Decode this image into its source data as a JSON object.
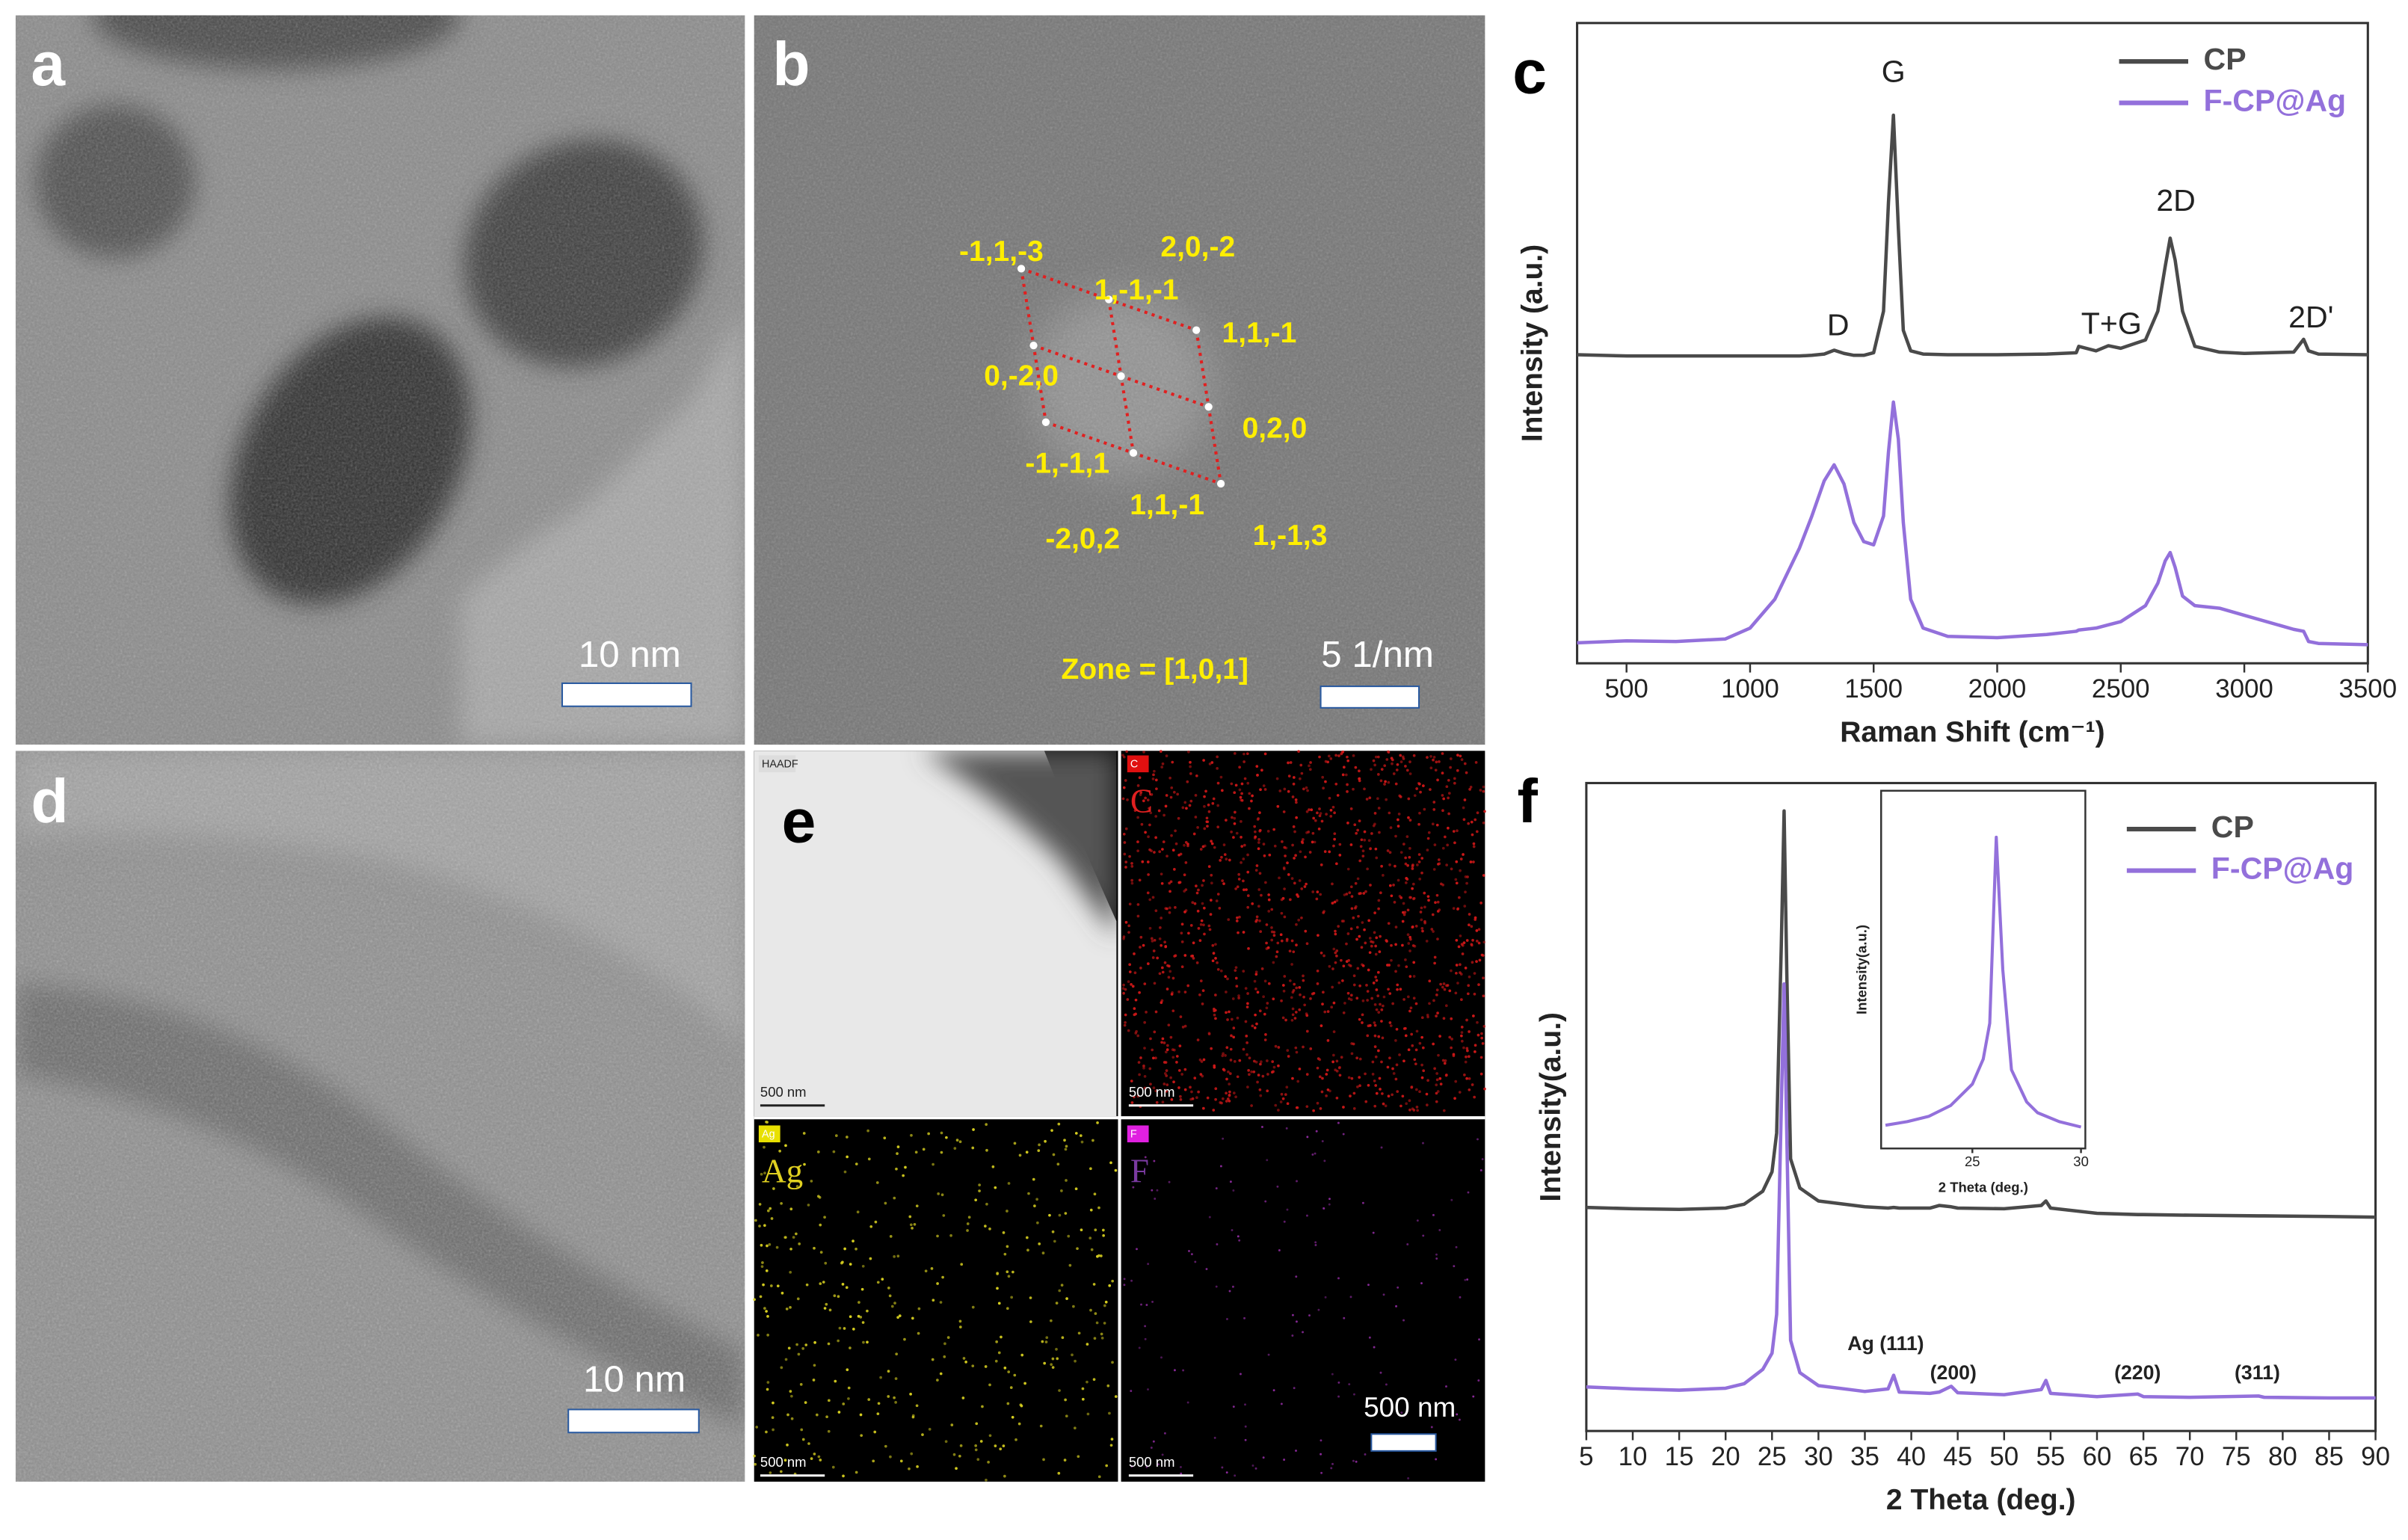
{
  "panels": {
    "a": {
      "label": "a",
      "scale_bar": "10 nm"
    },
    "b": {
      "label": "b",
      "spots": [
        "-1,1,-3",
        "2,0,-2",
        "1,-1,-1",
        "1,1,-1",
        "0,-2,0",
        "0,2,0",
        "-1,-1,1",
        "1,1,-1",
        "-2,0,2",
        "1,-1,3"
      ],
      "zone": "Zone = [1,0,1]",
      "scale_bar": "5 1/nm"
    },
    "d": {
      "label": "d",
      "scale_bar": "10 nm"
    },
    "e": {
      "label": "e",
      "maps": [
        {
          "tag": "HAADF",
          "scale_bar": "500 nm"
        },
        {
          "tag": "C",
          "element": "C",
          "scale_bar": "500 nm"
        },
        {
          "tag": "Ag",
          "element": "Ag",
          "scale_bar": "500 nm"
        },
        {
          "tag": "F",
          "element": "F",
          "scale_bar": "500 nm"
        }
      ],
      "scale_bar": "500 nm"
    }
  },
  "chart_data": [
    {
      "type": "line",
      "panel_label": "c",
      "xlabel": "Raman Shift (cm⁻¹)",
      "ylabel": "Intensity (a.u.)",
      "x": [
        300,
        500,
        700,
        900,
        1000,
        1100,
        1200,
        1250,
        1300,
        1340,
        1380,
        1420,
        1460,
        1500,
        1540,
        1560,
        1580,
        1600,
        1620,
        1650,
        1700,
        1800,
        2000,
        2200,
        2320,
        2330,
        2400,
        2450,
        2500,
        2600,
        2650,
        2680,
        2700,
        2720,
        2750,
        2800,
        2900,
        3000,
        3200,
        3240,
        3260,
        3300,
        3500
      ],
      "series": [
        {
          "name": "CP",
          "color": "#4a4a4a",
          "values": [
            48.2,
            48.0,
            48.0,
            48.0,
            48.0,
            48.0,
            48.0,
            48.1,
            48.3,
            48.9,
            48.4,
            48.1,
            48.1,
            48.5,
            55,
            72,
            85.6,
            68,
            52,
            48.8,
            48.3,
            48.2,
            48.2,
            48.3,
            48.5,
            49.5,
            48.8,
            49.6,
            49.2,
            50.5,
            55,
            62,
            66.4,
            63,
            55,
            49.5,
            48.6,
            48.4,
            48.6,
            50.6,
            48.8,
            48.3,
            48.2
          ]
        },
        {
          "name": "F-CP@Ag",
          "color": "#9370db",
          "values": [
            3.2,
            3.5,
            3.4,
            3.8,
            5.5,
            10,
            18,
            23,
            28.5,
            31,
            28,
            22,
            19,
            18.5,
            23,
            33,
            40.8,
            35,
            22,
            10,
            5.5,
            4.2,
            4,
            4.5,
            5,
            5.2,
            5.5,
            6,
            6.5,
            9,
            12.5,
            16,
            17.3,
            15,
            10.5,
            9,
            8.6,
            7.5,
            5.3,
            5,
            3.4,
            3.1,
            2.9
          ]
        }
      ],
      "xlim": [
        300,
        3500
      ],
      "xticks": [
        500,
        1000,
        1500,
        2000,
        2500,
        3000,
        3500
      ],
      "ylim": [
        0,
        100
      ],
      "legend": "upper right",
      "annotations": [
        "G",
        "D",
        "T+G",
        "2D",
        "2D'"
      ]
    },
    {
      "type": "line",
      "panel_label": "f",
      "xlabel": "2 Theta (deg.)",
      "ylabel": "Intensity(a.u.)",
      "x": [
        5,
        10,
        15,
        20,
        22,
        24,
        25,
        25.5,
        26,
        26.3,
        26.6,
        27,
        28,
        30,
        35,
        37.5,
        38.1,
        38.7,
        42,
        43,
        44.3,
        45,
        50,
        54,
        54.5,
        55,
        60,
        64.4,
        65,
        70,
        77.4,
        78,
        85,
        90
      ],
      "series": [
        {
          "name": "CP",
          "color": "#4a4a4a",
          "values": [
            34.5,
            34.3,
            34.2,
            34.4,
            35,
            37,
            40,
            46,
            75,
            95.7,
            70,
            42,
            37.5,
            35.5,
            34.6,
            34.4,
            34.5,
            34.4,
            34.4,
            34.8,
            34.6,
            34.4,
            34.3,
            34.8,
            35.5,
            34.4,
            33.6,
            33.4,
            33.4,
            33.3,
            33.2,
            33.2,
            33.1,
            33.0
          ]
        },
        {
          "name": "F-CP@Ag",
          "color": "#9370db",
          "values": [
            6.8,
            6.5,
            6.3,
            6.6,
            7.3,
            9.5,
            12,
            18,
            50,
            69,
            45,
            14,
            9,
            7,
            6.1,
            6.5,
            8.6,
            6.0,
            5.8,
            6.0,
            6.9,
            5.9,
            5.6,
            6.4,
            7.8,
            5.8,
            5.3,
            5.7,
            5.3,
            5.2,
            5.4,
            5.2,
            5.1,
            5.1
          ]
        }
      ],
      "xlim": [
        5,
        90
      ],
      "xticks": [
        5,
        10,
        15,
        20,
        25,
        30,
        35,
        40,
        45,
        50,
        55,
        60,
        65,
        70,
        75,
        80,
        85,
        90
      ],
      "ylim": [
        0,
        100
      ],
      "legend": "upper right",
      "annotations": [
        "Ag (111)",
        "(200)",
        "(220)",
        "(311)"
      ],
      "inset": {
        "type": "line",
        "xlabel": "2 Theta (deg.)",
        "ylabel": "Intensity(a.u.)",
        "color": "#9370db",
        "x": [
          21,
          22,
          23,
          24,
          25,
          25.5,
          25.8,
          26.1,
          26.4,
          26.8,
          27.5,
          28,
          29,
          30
        ],
        "values": [
          6.5,
          7.5,
          9,
          12,
          18,
          25,
          35,
          87,
          50,
          22,
          13,
          10,
          7.5,
          6
        ],
        "xlim": [
          20.8,
          30.2
        ],
        "xticks": [
          25,
          30
        ],
        "ylim": [
          0,
          100
        ]
      }
    }
  ]
}
